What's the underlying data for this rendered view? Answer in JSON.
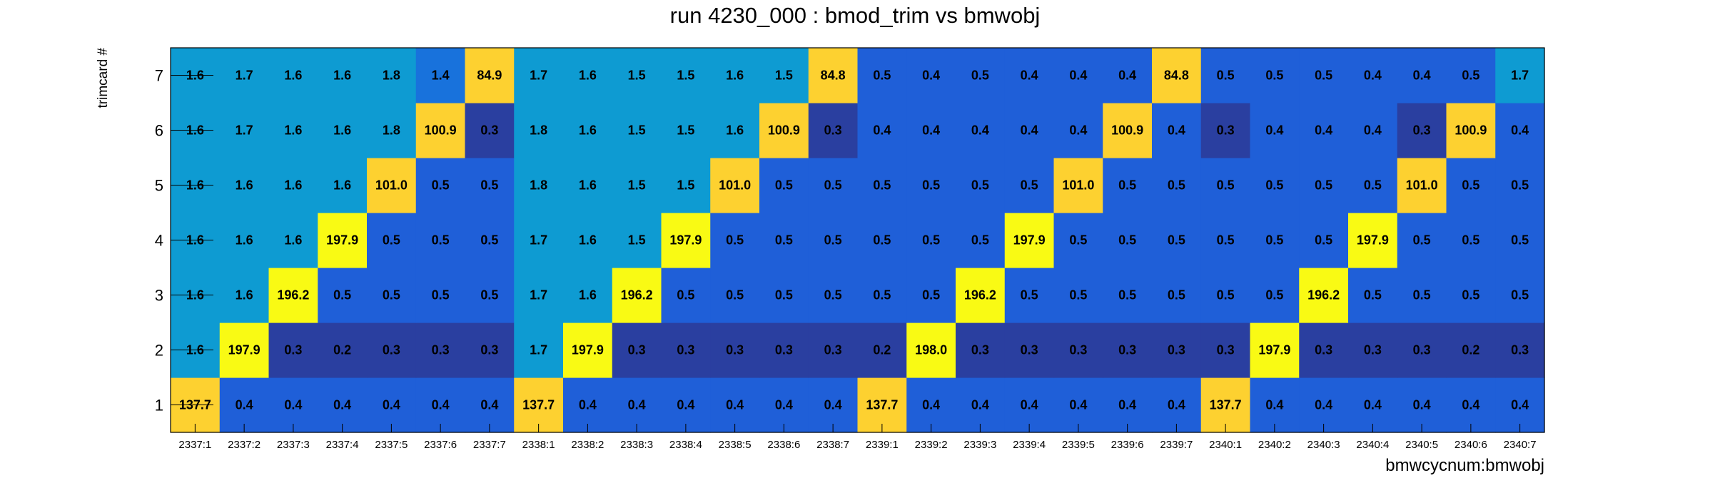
{
  "chart_data": {
    "type": "heatmap",
    "title": "run 4230_000 : bmod_trim vs bmwobj",
    "xlabel": "bmwcycnum:bmwobj",
    "ylabel": "trimcard #",
    "x_categories": [
      "2337:1",
      "2337:2",
      "2337:3",
      "2337:4",
      "2337:5",
      "2337:6",
      "2337:7",
      "2338:1",
      "2338:2",
      "2338:3",
      "2338:4",
      "2338:5",
      "2338:6",
      "2338:7",
      "2339:1",
      "2339:2",
      "2339:3",
      "2339:4",
      "2339:5",
      "2339:6",
      "2339:7",
      "2340:1",
      "2340:2",
      "2340:3",
      "2340:4",
      "2340:5",
      "2340:6",
      "2340:7"
    ],
    "y_categories": [
      "1",
      "2",
      "3",
      "4",
      "5",
      "6",
      "7"
    ],
    "values": [
      [
        137.7,
        0.4,
        0.4,
        0.4,
        0.4,
        0.4,
        0.4,
        137.7,
        0.4,
        0.4,
        0.4,
        0.4,
        0.4,
        0.4,
        137.7,
        0.4,
        0.4,
        0.4,
        0.4,
        0.4,
        0.4,
        137.7,
        0.4,
        0.4,
        0.4,
        0.4,
        0.4,
        0.4
      ],
      [
        1.6,
        197.9,
        0.3,
        0.2,
        0.3,
        0.3,
        0.3,
        1.7,
        197.9,
        0.3,
        0.3,
        0.3,
        0.3,
        0.3,
        0.2,
        198.0,
        0.3,
        0.3,
        0.3,
        0.3,
        0.3,
        0.3,
        197.9,
        0.3,
        0.3,
        0.3,
        0.2,
        0.3
      ],
      [
        1.6,
        1.6,
        196.2,
        0.5,
        0.5,
        0.5,
        0.5,
        1.7,
        1.6,
        196.2,
        0.5,
        0.5,
        0.5,
        0.5,
        0.5,
        0.5,
        196.2,
        0.5,
        0.5,
        0.5,
        0.5,
        0.5,
        0.5,
        196.2,
        0.5,
        0.5,
        0.5,
        0.5
      ],
      [
        1.6,
        1.6,
        1.6,
        197.9,
        0.5,
        0.5,
        0.5,
        1.7,
        1.6,
        1.5,
        197.9,
        0.5,
        0.5,
        0.5,
        0.5,
        0.5,
        0.5,
        197.9,
        0.5,
        0.5,
        0.5,
        0.5,
        0.5,
        0.5,
        197.9,
        0.5,
        0.5,
        0.5
      ],
      [
        1.6,
        1.6,
        1.6,
        1.6,
        101.0,
        0.5,
        0.5,
        1.8,
        1.6,
        1.5,
        1.5,
        101.0,
        0.5,
        0.5,
        0.5,
        0.5,
        0.5,
        0.5,
        101.0,
        0.5,
        0.5,
        0.5,
        0.5,
        0.5,
        0.5,
        101.0,
        0.5,
        0.5
      ],
      [
        1.6,
        1.7,
        1.6,
        1.6,
        1.8,
        100.9,
        0.3,
        1.8,
        1.6,
        1.5,
        1.5,
        1.6,
        100.9,
        0.3,
        0.4,
        0.4,
        0.4,
        0.4,
        0.4,
        100.9,
        0.4,
        0.3,
        0.4,
        0.4,
        0.4,
        0.3,
        100.9,
        0.4
      ],
      [
        1.6,
        1.7,
        1.6,
        1.6,
        1.8,
        1.4,
        84.9,
        1.7,
        1.6,
        1.5,
        1.5,
        1.6,
        1.5,
        84.8,
        0.5,
        0.4,
        0.5,
        0.4,
        0.4,
        0.4,
        84.8,
        0.5,
        0.5,
        0.5,
        0.4,
        0.4,
        0.5,
        1.7
      ]
    ],
    "value_format": "one decimal",
    "grid": false,
    "legend": "none",
    "colors": {
      "hot": "#f9fa14",
      "mid_hot": "#fdd130",
      "high_low": "#0e9bd2",
      "mid_low": "#1872dc",
      "low": "#1f5fd8",
      "very_low": "#2a3fa0",
      "text": "#000000"
    }
  }
}
